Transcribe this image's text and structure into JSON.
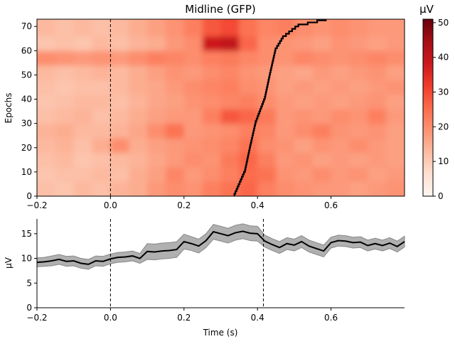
{
  "chart_data": [
    {
      "type": "heatmap",
      "title": "Midline (GFP)",
      "xlabel": "",
      "ylabel": "Epochs",
      "xlim": [
        -0.2,
        0.8
      ],
      "ylim": [
        0,
        73
      ],
      "xticks": [
        -0.2,
        0.0,
        0.2,
        0.4,
        0.6
      ],
      "xtick_labels": [
        "−0.2",
        "0.0",
        "0.2",
        "0.4",
        "0.6"
      ],
      "yticks": [
        0,
        10,
        20,
        30,
        40,
        50,
        60,
        70
      ],
      "colormap": "Reds",
      "colorbar": {
        "label": "µV",
        "vmin": 0,
        "vmax": 51,
        "ticks": [
          0,
          10,
          20,
          30,
          40,
          50
        ]
      },
      "vline_x": 0.0,
      "grid_times": [
        -0.2,
        -0.15,
        -0.1,
        -0.05,
        0.0,
        0.05,
        0.1,
        0.15,
        0.2,
        0.25,
        0.3,
        0.35,
        0.4,
        0.45,
        0.5,
        0.55,
        0.6,
        0.65,
        0.7,
        0.75
      ],
      "grid_epoch_starts": [
        0,
        6,
        12,
        18,
        24,
        30,
        36,
        42,
        48,
        54,
        60,
        66
      ],
      "values": [
        [
          12,
          11,
          13,
          12,
          14,
          15,
          18,
          20,
          19,
          22,
          24,
          26,
          22,
          20,
          19,
          18,
          18,
          17,
          18,
          19
        ],
        [
          11,
          12,
          12,
          13,
          12,
          15,
          17,
          21,
          18,
          20,
          22,
          25,
          24,
          19,
          18,
          20,
          18,
          19,
          17,
          18
        ],
        [
          12,
          13,
          11,
          12,
          13,
          14,
          16,
          18,
          20,
          19,
          23,
          26,
          22,
          18,
          19,
          17,
          18,
          17,
          18,
          17
        ],
        [
          13,
          14,
          12,
          15,
          20,
          15,
          17,
          18,
          19,
          20,
          21,
          24,
          20,
          19,
          17,
          19,
          18,
          20,
          18,
          17
        ],
        [
          14,
          15,
          13,
          13,
          14,
          16,
          20,
          24,
          18,
          19,
          20,
          22,
          21,
          18,
          20,
          22,
          19,
          18,
          19,
          17
        ],
        [
          12,
          13,
          14,
          12,
          13,
          15,
          17,
          18,
          18,
          22,
          28,
          26,
          23,
          18,
          19,
          18,
          20,
          19,
          22,
          18
        ],
        [
          11,
          12,
          13,
          13,
          12,
          14,
          16,
          17,
          19,
          20,
          21,
          22,
          20,
          18,
          17,
          18,
          17,
          18,
          19,
          17
        ],
        [
          12,
          11,
          12,
          12,
          13,
          15,
          16,
          18,
          20,
          21,
          22,
          20,
          19,
          17,
          18,
          17,
          18,
          17,
          18,
          19
        ],
        [
          13,
          12,
          13,
          14,
          13,
          15,
          17,
          19,
          18,
          20,
          21,
          19,
          18,
          17,
          16,
          18,
          17,
          18,
          19,
          17
        ],
        [
          20,
          19,
          18,
          19,
          18,
          20,
          22,
          21,
          20,
          22,
          23,
          21,
          20,
          19,
          21,
          20,
          19,
          20,
          21,
          20
        ],
        [
          11,
          12,
          11,
          13,
          12,
          14,
          15,
          18,
          20,
          38,
          40,
          26,
          20,
          19,
          18,
          17,
          19,
          18,
          17,
          18
        ],
        [
          13,
          12,
          13,
          12,
          13,
          15,
          17,
          19,
          22,
          28,
          30,
          24,
          21,
          22,
          20,
          19,
          20,
          19,
          18,
          18
        ]
      ],
      "sort_line": {
        "epochs": [
          0,
          10,
          20,
          30,
          40,
          50,
          60,
          65,
          70,
          72.5
        ],
        "times": [
          0.337,
          0.366,
          0.38,
          0.395,
          0.42,
          0.434,
          0.449,
          0.469,
          0.511,
          0.588
        ]
      }
    },
    {
      "type": "line",
      "xlabel": "Time (s)",
      "ylabel": "µV",
      "xlim": [
        -0.2,
        0.8
      ],
      "ylim": [
        0,
        18
      ],
      "xticks": [
        -0.2,
        0.0,
        0.2,
        0.4,
        0.6
      ],
      "xtick_labels": [
        "−0.2",
        "0.0",
        "0.2",
        "0.4",
        "0.6"
      ],
      "yticks": [
        0,
        5,
        10,
        15
      ],
      "vlines_x": [
        0.0,
        0.416
      ],
      "band_color": "#b0b0b0",
      "line_color": "#000000",
      "x": [
        -0.2,
        -0.18,
        -0.16,
        -0.14,
        -0.12,
        -0.1,
        -0.08,
        -0.06,
        -0.04,
        -0.02,
        0.0,
        0.02,
        0.04,
        0.06,
        0.08,
        0.1,
        0.12,
        0.14,
        0.16,
        0.18,
        0.2,
        0.22,
        0.24,
        0.26,
        0.28,
        0.3,
        0.32,
        0.34,
        0.36,
        0.38,
        0.4,
        0.42,
        0.44,
        0.46,
        0.48,
        0.5,
        0.52,
        0.54,
        0.56,
        0.58,
        0.6,
        0.62,
        0.64,
        0.66,
        0.68,
        0.7,
        0.72,
        0.74,
        0.76,
        0.78,
        0.8
      ],
      "mean": [
        9.2,
        9.3,
        9.5,
        9.8,
        9.4,
        9.5,
        9.0,
        8.8,
        9.5,
        9.4,
        9.9,
        10.2,
        10.3,
        10.5,
        10.0,
        11.4,
        11.3,
        11.5,
        11.6,
        11.8,
        13.4,
        13.0,
        12.5,
        13.6,
        15.4,
        15.0,
        14.6,
        15.2,
        15.5,
        15.1,
        15.0,
        13.5,
        12.8,
        12.2,
        13.0,
        12.7,
        13.4,
        12.5,
        12.0,
        11.5,
        13.2,
        13.6,
        13.5,
        13.2,
        13.3,
        12.6,
        13.0,
        12.6,
        13.1,
        12.4,
        13.4
      ],
      "band_halfwidth": [
        0.9,
        0.9,
        1.0,
        1.0,
        1.0,
        1.0,
        1.0,
        1.0,
        1.0,
        1.0,
        1.0,
        1.0,
        1.0,
        1.0,
        1.0,
        1.6,
        1.6,
        1.6,
        1.6,
        1.6,
        1.5,
        1.4,
        1.4,
        1.4,
        1.5,
        1.5,
        1.5,
        1.5,
        1.5,
        1.5,
        1.5,
        1.2,
        1.2,
        1.2,
        1.2,
        1.2,
        1.2,
        1.2,
        1.2,
        1.2,
        1.1,
        1.1,
        1.1,
        1.1,
        1.1,
        1.1,
        1.1,
        1.1,
        1.1,
        1.1,
        1.1
      ]
    }
  ]
}
